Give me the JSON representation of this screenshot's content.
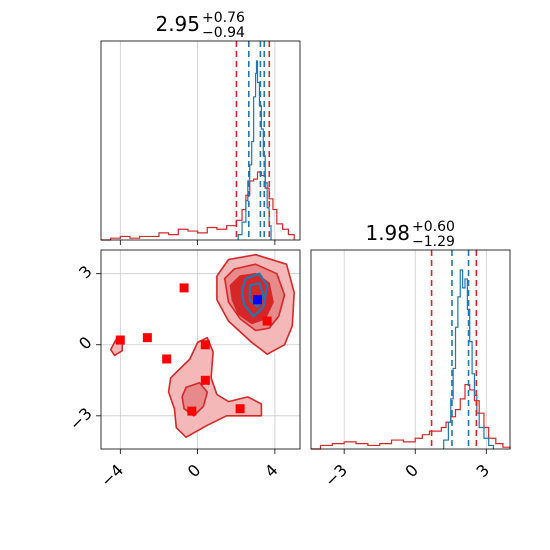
{
  "chart_data": [
    {
      "type": "histogram",
      "panel": "marginal-param-1",
      "title": {
        "median": "2.95",
        "upper": "+0.76",
        "lower": "−0.94"
      },
      "x_ticks": [
        "−4",
        "0",
        "4"
      ],
      "xlim": [
        -5.0,
        5.3
      ],
      "grid": true,
      "series": [
        {
          "color": "#d62728",
          "bins": [
            -5.0,
            -4.5,
            -4.0,
            -3.5,
            -3.0,
            -2.5,
            -2.0,
            -1.5,
            -1.0,
            -0.5,
            0.0,
            0.5,
            1.0,
            1.5,
            2.0,
            2.3,
            2.5,
            2.7,
            2.9,
            3.1,
            3.3,
            3.5,
            3.7,
            3.9,
            4.1,
            4.4,
            4.7,
            5.0
          ],
          "counts": [
            0.0,
            0.01,
            0.02,
            0.01,
            0.02,
            0.02,
            0.04,
            0.03,
            0.06,
            0.05,
            0.04,
            0.07,
            0.06,
            0.08,
            0.11,
            0.17,
            0.25,
            0.33,
            0.34,
            0.38,
            0.36,
            0.29,
            0.23,
            0.17,
            0.09,
            0.06,
            0.03
          ]
        },
        {
          "color": "#1f77b4",
          "bins": [
            2.1,
            2.3,
            2.5,
            2.6,
            2.7,
            2.8,
            2.9,
            3.0,
            3.05,
            3.1,
            3.2,
            3.3,
            3.4,
            3.5,
            3.6,
            3.7,
            3.8
          ],
          "counts": [
            0.03,
            0.1,
            0.22,
            0.33,
            0.42,
            0.55,
            0.8,
            0.93,
            1.0,
            0.88,
            0.75,
            0.62,
            0.47,
            0.32,
            0.18,
            0.08
          ]
        }
      ],
      "vlines": [
        {
          "x": 2.01,
          "color": "#d62728"
        },
        {
          "x": 3.71,
          "color": "#d62728"
        },
        {
          "x": 2.65,
          "color": "#1f77b4"
        },
        {
          "x": 3.25,
          "color": "#1f77b4"
        },
        {
          "x": 3.45,
          "color": "#1f77b4"
        }
      ]
    },
    {
      "type": "contour",
      "panel": "joint-param-1-param-2",
      "x_ticks": [
        "−4",
        "0",
        "4"
      ],
      "y_ticks": [
        "3",
        "0",
        "−3"
      ],
      "xlim": [
        -5.0,
        5.3
      ],
      "ylim": [
        -4.4,
        4.0
      ],
      "grid": true,
      "red_markers": [
        [
          3.1,
          1.9
        ],
        [
          3.6,
          1.0
        ],
        [
          -0.7,
          2.4
        ],
        [
          -4.0,
          0.2
        ],
        [
          -2.6,
          0.3
        ],
        [
          -1.6,
          -0.6
        ],
        [
          0.4,
          0.0
        ],
        [
          0.4,
          -1.5
        ],
        [
          -0.3,
          -2.8
        ],
        [
          2.2,
          -2.7
        ]
      ],
      "blue_marker": [
        3.1,
        1.9
      ],
      "regions": [
        {
          "name": "outer",
          "fill": "#f4b8b8",
          "points": [
            [
              1.0,
              2.9
            ],
            [
              1.6,
              3.6
            ],
            [
              3.0,
              3.8
            ],
            [
              4.6,
              3.4
            ],
            [
              5.0,
              2.2
            ],
            [
              4.9,
              0.8
            ],
            [
              4.5,
              0.0
            ],
            [
              3.6,
              -0.4
            ],
            [
              2.8,
              0.1
            ],
            [
              1.6,
              1.0
            ],
            [
              1.0,
              1.9
            ]
          ]
        },
        {
          "name": "mid",
          "fill": "#e8898b",
          "points": [
            [
              1.4,
              2.8
            ],
            [
              1.9,
              3.2
            ],
            [
              3.0,
              3.4
            ],
            [
              4.1,
              3.0
            ],
            [
              4.5,
              2.1
            ],
            [
              4.2,
              1.2
            ],
            [
              3.7,
              0.7
            ],
            [
              3.0,
              0.6
            ],
            [
              2.2,
              1.1
            ],
            [
              1.6,
              1.8
            ]
          ]
        },
        {
          "name": "inner",
          "fill": "#d62728",
          "points": [
            [
              1.7,
              2.5
            ],
            [
              2.2,
              2.9
            ],
            [
              3.0,
              3.0
            ],
            [
              3.7,
              2.6
            ],
            [
              3.9,
              1.8
            ],
            [
              3.5,
              1.1
            ],
            [
              2.8,
              0.9
            ],
            [
              2.1,
              1.3
            ],
            [
              1.8,
              1.9
            ]
          ]
        },
        {
          "name": "lower-blob",
          "fill": "#f4b8b8",
          "points": [
            [
              -1.4,
              -1.4
            ],
            [
              -0.9,
              -1.0
            ],
            [
              -0.4,
              -0.6
            ],
            [
              0.0,
              0.1
            ],
            [
              0.5,
              0.3
            ],
            [
              0.8,
              -0.3
            ],
            [
              0.7,
              -1.4
            ],
            [
              1.0,
              -2.1
            ],
            [
              1.6,
              -2.4
            ],
            [
              2.6,
              -2.2
            ],
            [
              3.3,
              -2.5
            ],
            [
              3.3,
              -3.0
            ],
            [
              2.5,
              -3.0
            ],
            [
              1.5,
              -3.0
            ],
            [
              0.5,
              -3.4
            ],
            [
              -0.6,
              -3.9
            ],
            [
              -1.1,
              -3.5
            ],
            [
              -1.2,
              -2.7
            ],
            [
              -1.5,
              -2.0
            ]
          ]
        },
        {
          "name": "lower-mid",
          "fill": "#e8898b",
          "points": [
            [
              -0.6,
              -1.8
            ],
            [
              0.1,
              -1.6
            ],
            [
              0.5,
              -2.0
            ],
            [
              0.3,
              -2.6
            ],
            [
              -0.2,
              -3.0
            ],
            [
              -0.7,
              -2.7
            ],
            [
              -0.8,
              -2.2
            ]
          ]
        },
        {
          "name": "left-blob",
          "fill": "#f4b8b8",
          "points": [
            [
              -4.5,
              -0.2
            ],
            [
              -4.2,
              0.25
            ],
            [
              -3.9,
              0.25
            ],
            [
              -3.9,
              -0.25
            ],
            [
              -4.3,
              -0.45
            ]
          ]
        }
      ],
      "blue_contours": [
        {
          "points": [
            [
              2.5,
              2.8
            ],
            [
              3.2,
              3.0
            ],
            [
              3.6,
              2.5
            ],
            [
              3.4,
              1.6
            ],
            [
              2.9,
              1.2
            ],
            [
              2.4,
              1.7
            ],
            [
              2.3,
              2.3
            ]
          ]
        },
        {
          "points": [
            [
              2.7,
              2.5
            ],
            [
              3.2,
              2.6
            ],
            [
              3.4,
              2.1
            ],
            [
              3.1,
              1.6
            ],
            [
              2.7,
              1.9
            ]
          ]
        }
      ]
    },
    {
      "type": "histogram",
      "panel": "marginal-param-2",
      "title": {
        "median": "1.98",
        "upper": "+0.60",
        "lower": "−1.29"
      },
      "x_ticks": [
        "−3",
        "0",
        "3"
      ],
      "xlim": [
        -4.4,
        4.0
      ],
      "grid": true,
      "series": [
        {
          "color": "#d62728",
          "bins": [
            -4.4,
            -4.0,
            -3.5,
            -3.0,
            -2.5,
            -2.0,
            -1.5,
            -1.0,
            -0.5,
            0.0,
            0.3,
            0.6,
            0.9,
            1.1,
            1.3,
            1.5,
            1.7,
            1.9,
            2.1,
            2.3,
            2.5,
            2.7,
            2.9,
            3.1,
            3.4,
            3.7,
            4.0
          ],
          "counts": [
            0.0,
            0.02,
            0.03,
            0.04,
            0.03,
            0.02,
            0.03,
            0.05,
            0.04,
            0.06,
            0.08,
            0.1,
            0.1,
            0.12,
            0.15,
            0.18,
            0.22,
            0.28,
            0.36,
            0.33,
            0.27,
            0.2,
            0.12,
            0.06,
            0.03,
            0.01
          ]
        },
        {
          "color": "#1f77b4",
          "bins": [
            1.2,
            1.4,
            1.5,
            1.6,
            1.7,
            1.8,
            1.9,
            2.0,
            2.1,
            2.2,
            2.3,
            2.4,
            2.5,
            2.6,
            2.7,
            2.9,
            3.1,
            3.3
          ],
          "counts": [
            0.05,
            0.15,
            0.28,
            0.45,
            0.68,
            0.85,
            1.0,
            0.9,
            0.95,
            0.78,
            0.6,
            0.42,
            0.3,
            0.2,
            0.12,
            0.06,
            0.02
          ]
        }
      ],
      "vlines": [
        {
          "x": 0.69,
          "color": "#d62728"
        },
        {
          "x": 2.58,
          "color": "#d62728"
        },
        {
          "x": 1.55,
          "color": "#1f77b4"
        },
        {
          "x": 2.25,
          "color": "#1f77b4"
        }
      ]
    }
  ],
  "colors": {
    "red": "#d62728",
    "blue": "#1f77b4",
    "grid": "#cccccc"
  }
}
